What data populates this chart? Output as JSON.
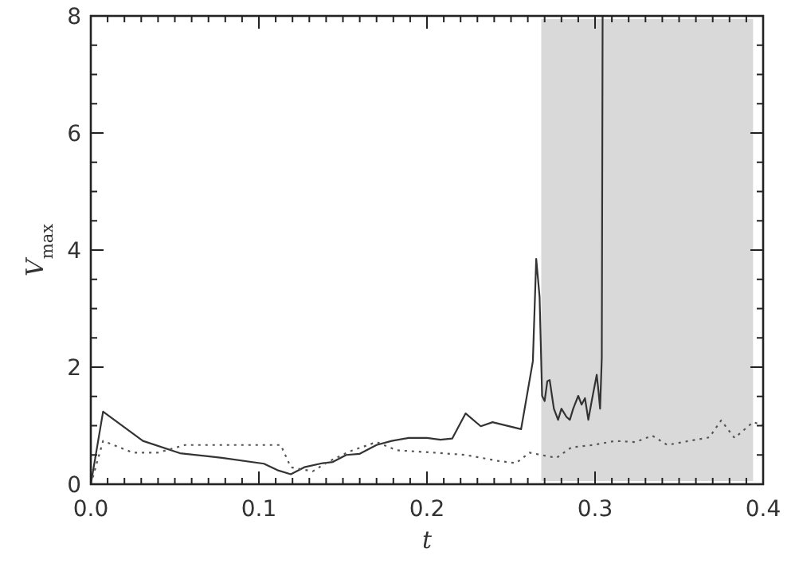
{
  "chart_data": {
    "type": "line",
    "xlabel": "t",
    "ylabel": "V$_{max}$",
    "xlim": [
      0,
      0.4
    ],
    "ylim": [
      0,
      8
    ],
    "xticks": [
      {
        "value": 0,
        "label": "0.0"
      },
      {
        "value": 0.01,
        "label": null
      },
      {
        "value": 0.02,
        "label": null
      },
      {
        "value": 0.03,
        "label": null
      },
      {
        "value": 0.04,
        "label": null
      },
      {
        "value": 0.05,
        "label": null
      },
      {
        "value": 0.06,
        "label": null
      },
      {
        "value": 0.07,
        "label": null
      },
      {
        "value": 0.08,
        "label": null
      },
      {
        "value": 0.09,
        "label": null
      },
      {
        "value": 0.1,
        "label": "0.1"
      },
      {
        "value": 0.11,
        "label": null
      },
      {
        "value": 0.12,
        "label": null
      },
      {
        "value": 0.13,
        "label": null
      },
      {
        "value": 0.14,
        "label": null
      },
      {
        "value": 0.15,
        "label": null
      },
      {
        "value": 0.16,
        "label": null
      },
      {
        "value": 0.17,
        "label": null
      },
      {
        "value": 0.18,
        "label": null
      },
      {
        "value": 0.19,
        "label": null
      },
      {
        "value": 0.2,
        "label": "0.2"
      },
      {
        "value": 0.21,
        "label": null
      },
      {
        "value": 0.22,
        "label": null
      },
      {
        "value": 0.23,
        "label": null
      },
      {
        "value": 0.24,
        "label": null
      },
      {
        "value": 0.25,
        "label": null
      },
      {
        "value": 0.26,
        "label": null
      },
      {
        "value": 0.27,
        "label": null
      },
      {
        "value": 0.28,
        "label": null
      },
      {
        "value": 0.29,
        "label": null
      },
      {
        "value": 0.3,
        "label": "0.3"
      },
      {
        "value": 0.31,
        "label": null
      },
      {
        "value": 0.32,
        "label": null
      },
      {
        "value": 0.33,
        "label": null
      },
      {
        "value": 0.34,
        "label": null
      },
      {
        "value": 0.35,
        "label": null
      },
      {
        "value": 0.36,
        "label": null
      },
      {
        "value": 0.37,
        "label": null
      },
      {
        "value": 0.38,
        "label": null
      },
      {
        "value": 0.39,
        "label": null
      },
      {
        "value": 0.4,
        "label": "0.4"
      }
    ],
    "yticks": [
      0,
      {
        "value": 0.5,
        "label": null
      },
      {
        "value": 1,
        "label": null
      },
      {
        "value": 1.5,
        "label": null
      },
      2,
      {
        "value": 2.5,
        "label": null
      },
      {
        "value": 3,
        "label": null
      },
      {
        "value": 3.5,
        "label": null
      },
      4,
      {
        "value": 4.5,
        "label": null
      },
      {
        "value": 5,
        "label": null
      },
      {
        "value": 5.5,
        "label": null
      },
      6,
      {
        "value": 6.5,
        "label": null
      },
      {
        "value": 7,
        "label": null
      },
      {
        "value": 7.5,
        "label": null
      },
      8
    ],
    "grid": false,
    "bands": [
      {
        "axis": "x",
        "from": 0.268,
        "to": 0.394,
        "color": "#d9d9d9"
      }
    ],
    "series": [
      {
        "color": "#333333",
        "line_style": "solid",
        "x": [
          0,
          0.0073,
          0.031,
          0.053,
          0.078,
          0.103,
          0.111,
          0.119,
          0.127,
          0.138,
          0.144,
          0.152,
          0.16,
          0.17,
          0.179,
          0.189,
          0.2,
          0.208,
          0.215,
          0.223,
          0.232,
          0.239,
          0.256,
          0.263,
          0.265,
          0.267,
          0.2685,
          0.27,
          0.2716,
          0.273,
          0.2755,
          0.278,
          0.28,
          0.283,
          0.285,
          0.287,
          0.29,
          0.292,
          0.294,
          0.296,
          0.298,
          0.301,
          0.302,
          0.303,
          0.304,
          0.3045
        ],
        "values": [
          0,
          1.24,
          0.74,
          0.53,
          0.45,
          0.35,
          0.24,
          0.17,
          0.29,
          0.36,
          0.38,
          0.5,
          0.52,
          0.67,
          0.74,
          0.79,
          0.79,
          0.76,
          0.78,
          1.21,
          0.99,
          1.06,
          0.94,
          2.1,
          3.85,
          3.2,
          1.51,
          1.42,
          1.76,
          1.78,
          1.29,
          1.1,
          1.29,
          1.15,
          1.1,
          1.29,
          1.51,
          1.36,
          1.47,
          1.1,
          1.42,
          1.87,
          1.6,
          1.29,
          2.15,
          8
        ]
      },
      {
        "color": "#555555",
        "line_style": "dotted",
        "x": [
          0,
          0.0073,
          0.025,
          0.04,
          0.056,
          0.113,
          0.119,
          0.132,
          0.141,
          0.154,
          0.17,
          0.182,
          0.204,
          0.223,
          0.242,
          0.253,
          0.261,
          0.268,
          0.277,
          0.286,
          0.299,
          0.312,
          0.324,
          0.334,
          0.343,
          0.356,
          0.368,
          0.375,
          0.383,
          0.394,
          0.4
        ],
        "values": [
          0,
          0.74,
          0.54,
          0.54,
          0.67,
          0.67,
          0.29,
          0.22,
          0.38,
          0.56,
          0.72,
          0.58,
          0.54,
          0.5,
          0.4,
          0.36,
          0.54,
          0.5,
          0.45,
          0.63,
          0.67,
          0.74,
          0.72,
          0.83,
          0.67,
          0.74,
          0.8,
          1.09,
          0.79,
          1.06,
          1.01
        ]
      }
    ]
  }
}
